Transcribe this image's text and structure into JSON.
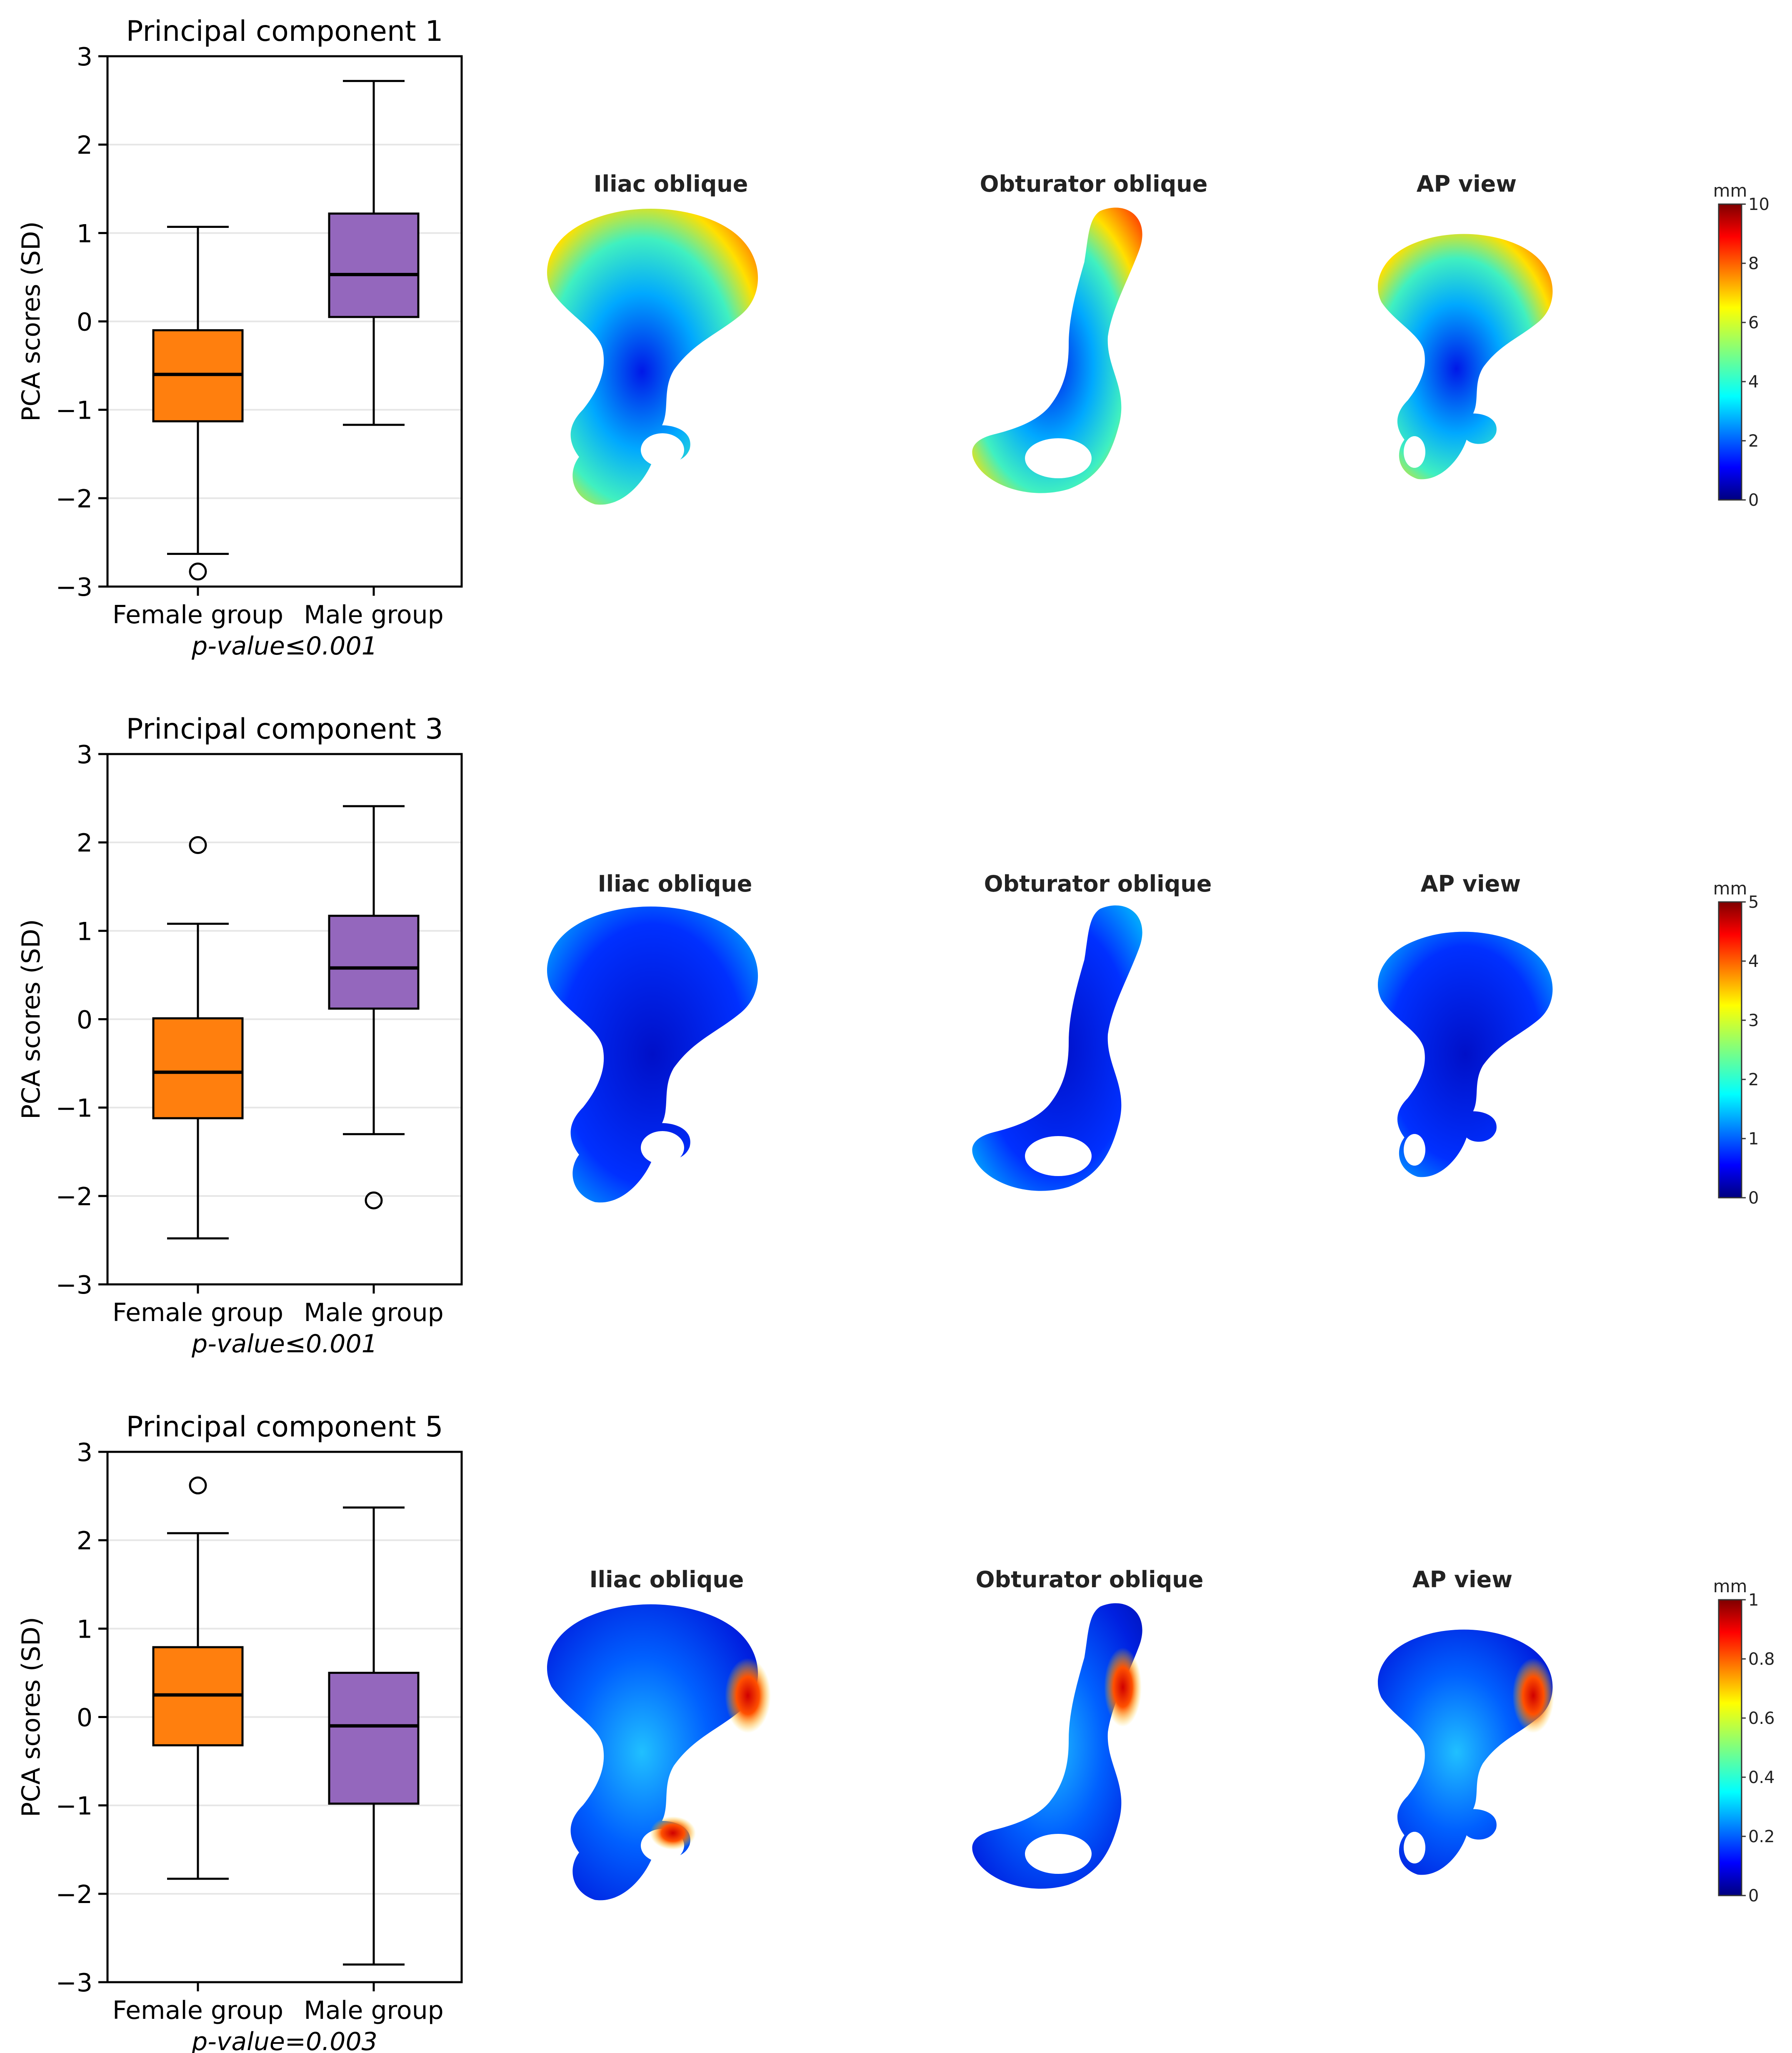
{
  "colors": {
    "female": "#ff7f0e",
    "male": "#9467bd",
    "median": "#000000",
    "grid": "#e6e6e6",
    "colormap": "jet"
  },
  "view_labels": [
    "Iliac oblique",
    "Obturator oblique",
    "AP view"
  ],
  "chart_data": [
    {
      "type": "box",
      "title": "Principal component 1",
      "ylabel": "PCA scores (SD)",
      "xlabel": "p-value≤0.001",
      "ylim": [
        -3,
        3
      ],
      "yticks": [
        3,
        2,
        1,
        0,
        -1,
        -2,
        -3
      ],
      "ytick_labels": [
        "3",
        "2",
        "1",
        "0",
        "−1",
        "−2",
        "−3"
      ],
      "grid": "horizontal",
      "categories": [
        "Female group",
        "Male group"
      ],
      "series": [
        {
          "category": "Female group",
          "whisker_low": -2.63,
          "q1": -1.13,
          "median": -0.6,
          "q3": -0.1,
          "whisker_high": 1.07,
          "outliers": [
            -2.83
          ]
        },
        {
          "category": "Male group",
          "whisker_low": -1.17,
          "q1": 0.05,
          "median": 0.53,
          "q3": 1.22,
          "whisker_high": 2.72,
          "outliers": []
        }
      ],
      "colorbar": {
        "unit": "mm",
        "min": 0,
        "max": 10,
        "ticks": [
          "10",
          "8",
          "6",
          "4",
          "2",
          "0"
        ]
      }
    },
    {
      "type": "box",
      "title": "Principal component 3",
      "ylabel": "PCA scores (SD)",
      "xlabel": "p-value≤0.001",
      "ylim": [
        -3,
        3
      ],
      "yticks": [
        3,
        2,
        1,
        0,
        -1,
        -2,
        -3
      ],
      "ytick_labels": [
        "3",
        "2",
        "1",
        "0",
        "−1",
        "−2",
        "−3"
      ],
      "grid": "horizontal",
      "categories": [
        "Female group",
        "Male group"
      ],
      "series": [
        {
          "category": "Female group",
          "whisker_low": -2.48,
          "q1": -1.12,
          "median": -0.6,
          "q3": 0.01,
          "whisker_high": 1.08,
          "outliers": [
            1.97
          ]
        },
        {
          "category": "Male group",
          "whisker_low": -1.3,
          "q1": 0.12,
          "median": 0.58,
          "q3": 1.17,
          "whisker_high": 2.41,
          "outliers": [
            -2.05
          ]
        }
      ],
      "colorbar": {
        "unit": "mm",
        "min": 0,
        "max": 5,
        "ticks": [
          "5",
          "4",
          "3",
          "2",
          "1",
          "0"
        ]
      }
    },
    {
      "type": "box",
      "title": "Principal component 5",
      "ylabel": "PCA scores (SD)",
      "xlabel": "p-value=0.003",
      "ylim": [
        -3,
        3
      ],
      "yticks": [
        3,
        2,
        1,
        0,
        -1,
        -2,
        -3
      ],
      "ytick_labels": [
        "3",
        "2",
        "1",
        "0",
        "−1",
        "−2",
        "−3"
      ],
      "grid": "horizontal",
      "categories": [
        "Female group",
        "Male group"
      ],
      "series": [
        {
          "category": "Female group",
          "whisker_low": -1.83,
          "q1": -0.32,
          "median": 0.25,
          "q3": 0.79,
          "whisker_high": 2.08,
          "outliers": [
            2.62
          ]
        },
        {
          "category": "Male group",
          "whisker_low": -2.8,
          "q1": -0.98,
          "median": -0.1,
          "q3": 0.5,
          "whisker_high": 2.37,
          "outliers": []
        }
      ],
      "colorbar": {
        "unit": "mm",
        "min": 0,
        "max": 1,
        "ticks": [
          "1",
          "0.8",
          "0.6",
          "0.4",
          "0.2",
          "0"
        ]
      }
    }
  ]
}
